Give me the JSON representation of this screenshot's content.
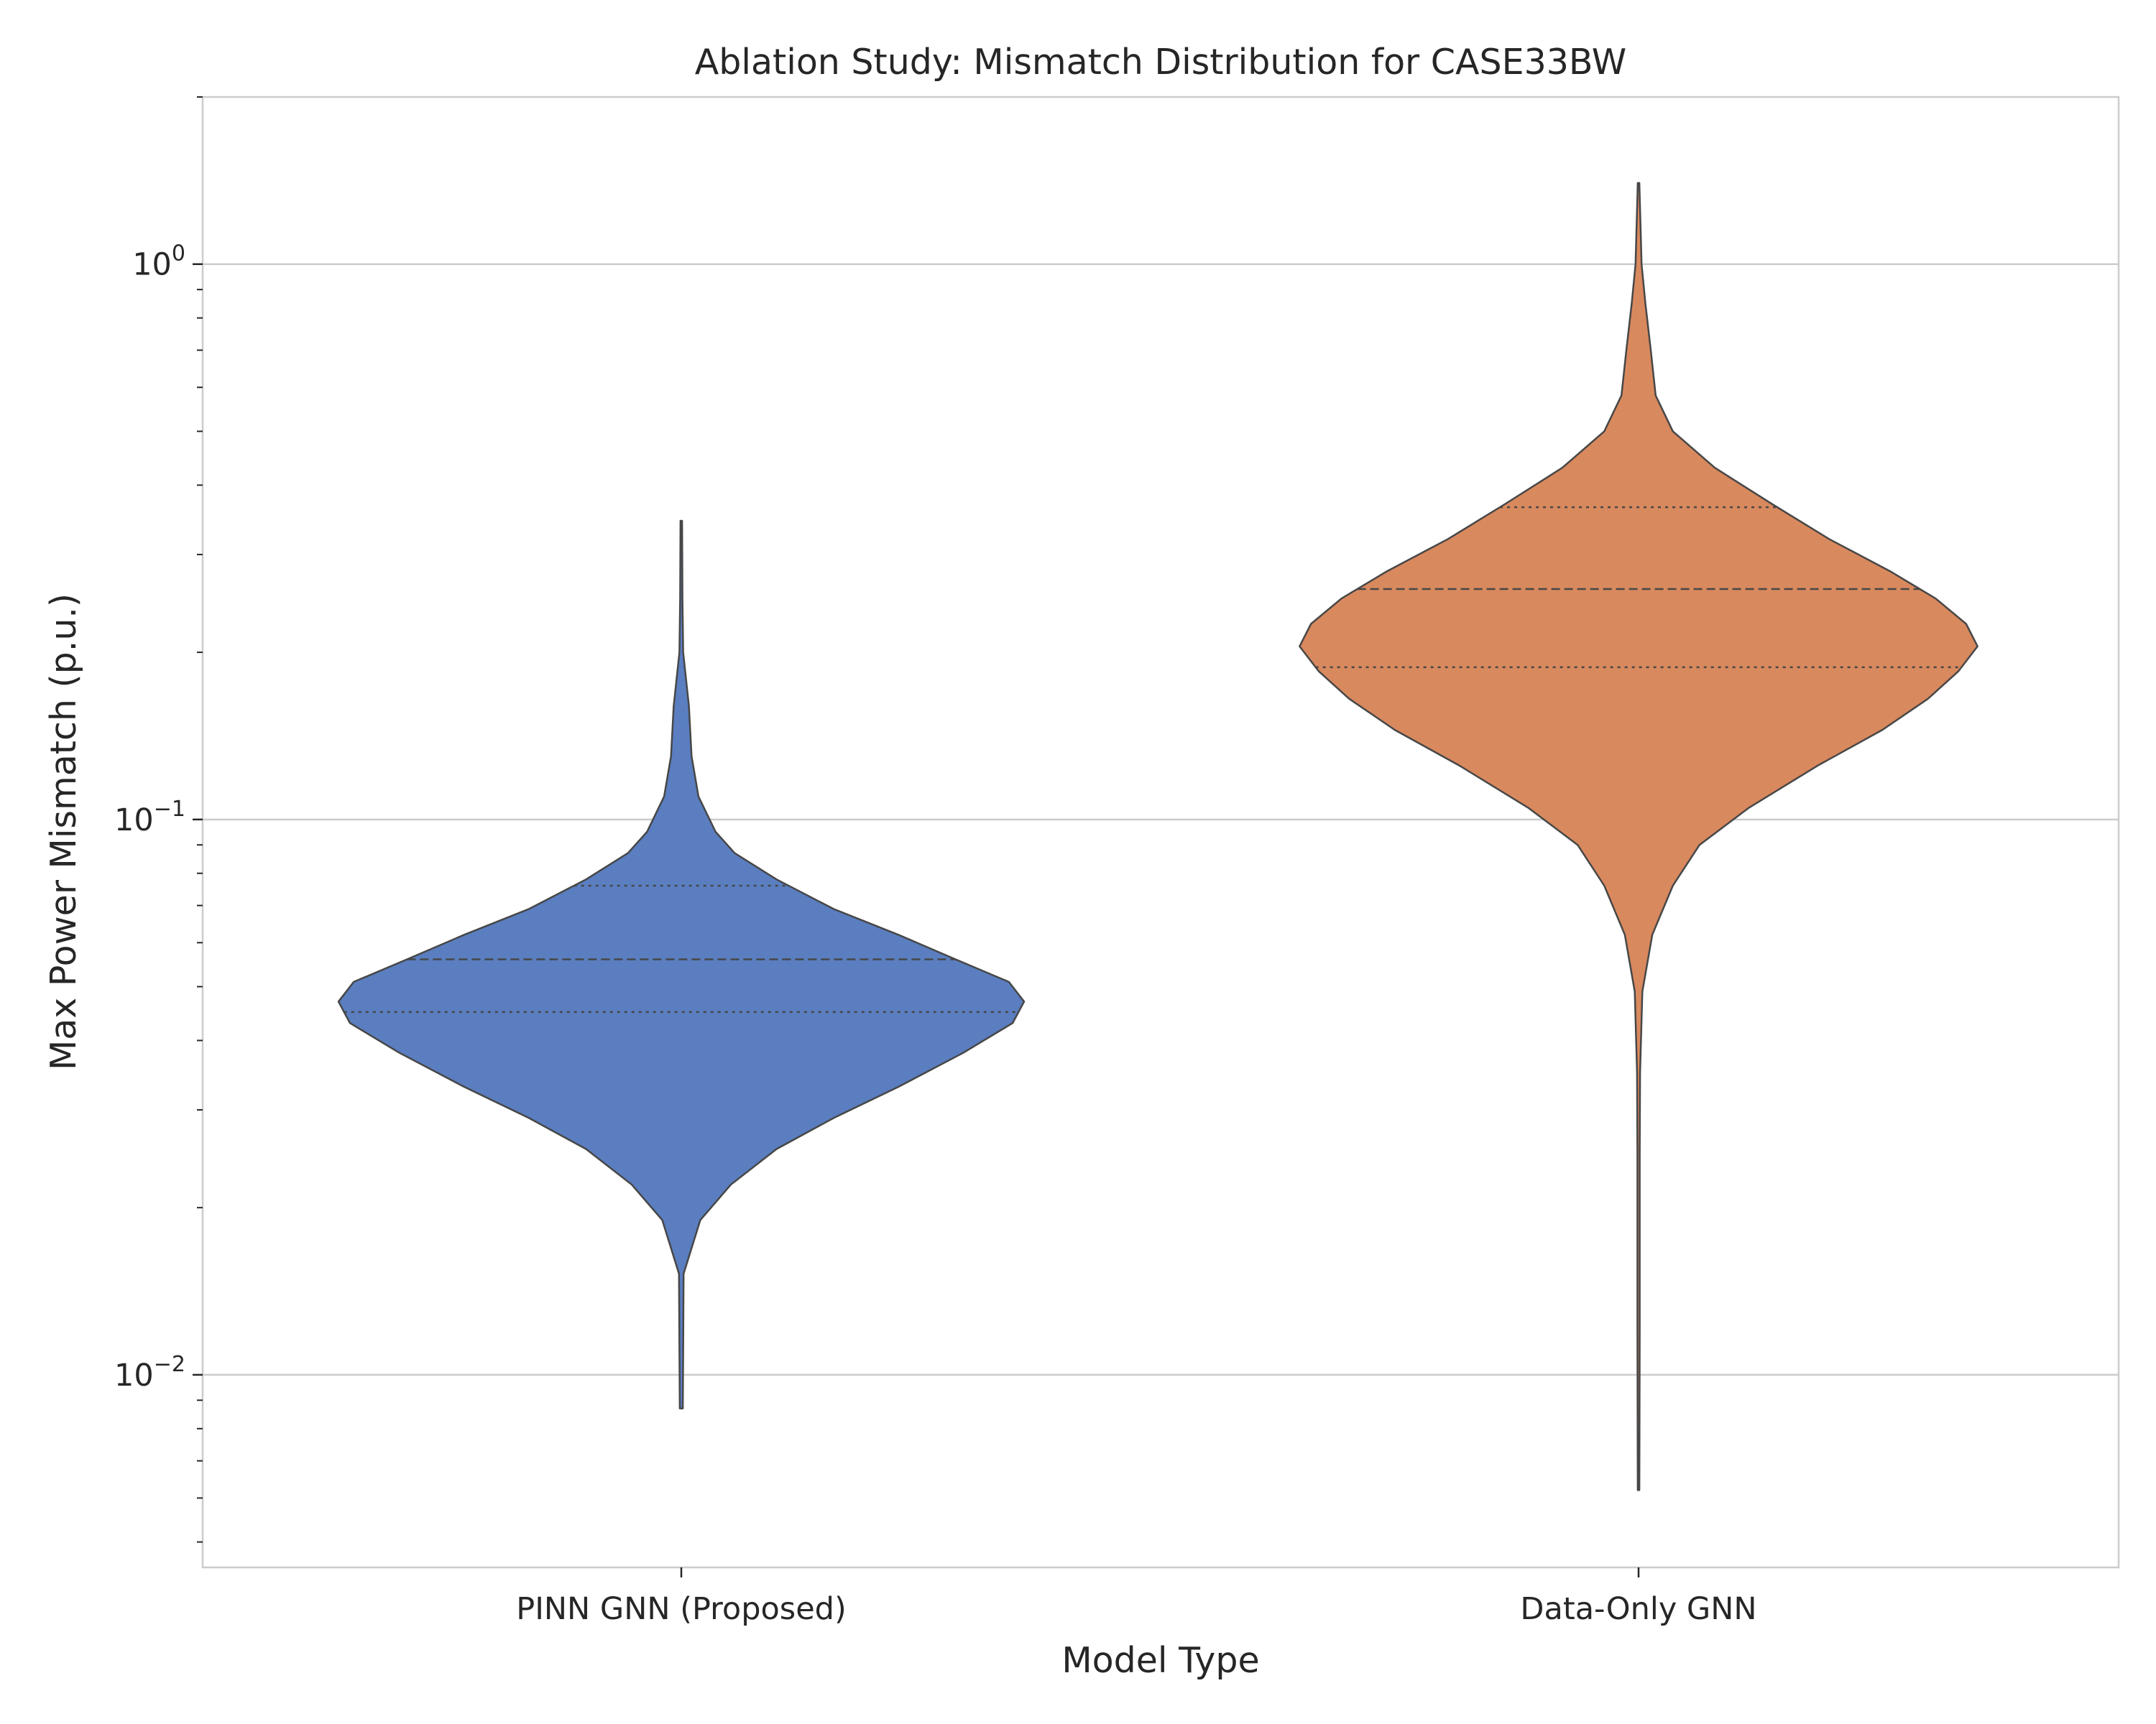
{
  "chart_data": {
    "type": "violin",
    "title": "Ablation Study: Mismatch Distribution for CASE33BW",
    "xlabel": "Model Type",
    "ylabel": "Max Power Mismatch (p.u.)",
    "yscale": "log",
    "ylim": [
      0.0045,
      2.0
    ],
    "grid": "horizontal",
    "yticks": [
      {
        "value": 0.01,
        "base": "10",
        "exp": "−2"
      },
      {
        "value": 0.1,
        "base": "10",
        "exp": "−1"
      },
      {
        "value": 1,
        "base": "10",
        "exp": "0"
      }
    ],
    "categories": [
      "PINN GNN (Proposed)",
      "Data-Only GNN"
    ],
    "violins": [
      {
        "category": "PINN GNN (Proposed)",
        "color": "#5a7ec0",
        "min": 0.0087,
        "max": 0.345,
        "q1": 0.045,
        "median": 0.056,
        "q3": 0.076,
        "density": [
          [
            0.0087,
            0.004
          ],
          [
            0.011,
            0.005
          ],
          [
            0.0152,
            0.006
          ],
          [
            0.019,
            0.05
          ],
          [
            0.022,
            0.13
          ],
          [
            0.0255,
            0.25
          ],
          [
            0.029,
            0.4
          ],
          [
            0.033,
            0.57
          ],
          [
            0.038,
            0.74
          ],
          [
            0.043,
            0.87
          ],
          [
            0.047,
            0.9
          ],
          [
            0.051,
            0.86
          ],
          [
            0.056,
            0.72
          ],
          [
            0.062,
            0.57
          ],
          [
            0.069,
            0.4
          ],
          [
            0.078,
            0.25
          ],
          [
            0.087,
            0.14
          ],
          [
            0.095,
            0.09
          ],
          [
            0.11,
            0.045
          ],
          [
            0.13,
            0.027
          ],
          [
            0.16,
            0.02
          ],
          [
            0.2,
            0.005
          ],
          [
            0.25,
            0.003
          ],
          [
            0.345,
            0.002
          ]
        ]
      },
      {
        "category": "Data-Only GNN",
        "color": "#d9895e",
        "min": 0.0062,
        "max": 1.4,
        "q1": 0.188,
        "median": 0.26,
        "q3": 0.365,
        "density": [
          [
            0.0062,
            0.002
          ],
          [
            0.012,
            0.003
          ],
          [
            0.025,
            0.003
          ],
          [
            0.035,
            0.004
          ],
          [
            0.049,
            0.01
          ],
          [
            0.062,
            0.036
          ],
          [
            0.076,
            0.09
          ],
          [
            0.09,
            0.16
          ],
          [
            0.105,
            0.29
          ],
          [
            0.125,
            0.47
          ],
          [
            0.145,
            0.64
          ],
          [
            0.165,
            0.76
          ],
          [
            0.185,
            0.84
          ],
          [
            0.205,
            0.89
          ],
          [
            0.225,
            0.86
          ],
          [
            0.25,
            0.78
          ],
          [
            0.28,
            0.66
          ],
          [
            0.32,
            0.5
          ],
          [
            0.37,
            0.35
          ],
          [
            0.43,
            0.2
          ],
          [
            0.5,
            0.09
          ],
          [
            0.58,
            0.045
          ],
          [
            0.7,
            0.032
          ],
          [
            0.85,
            0.018
          ],
          [
            1.0,
            0.008
          ],
          [
            1.4,
            0.002
          ]
        ]
      }
    ]
  }
}
